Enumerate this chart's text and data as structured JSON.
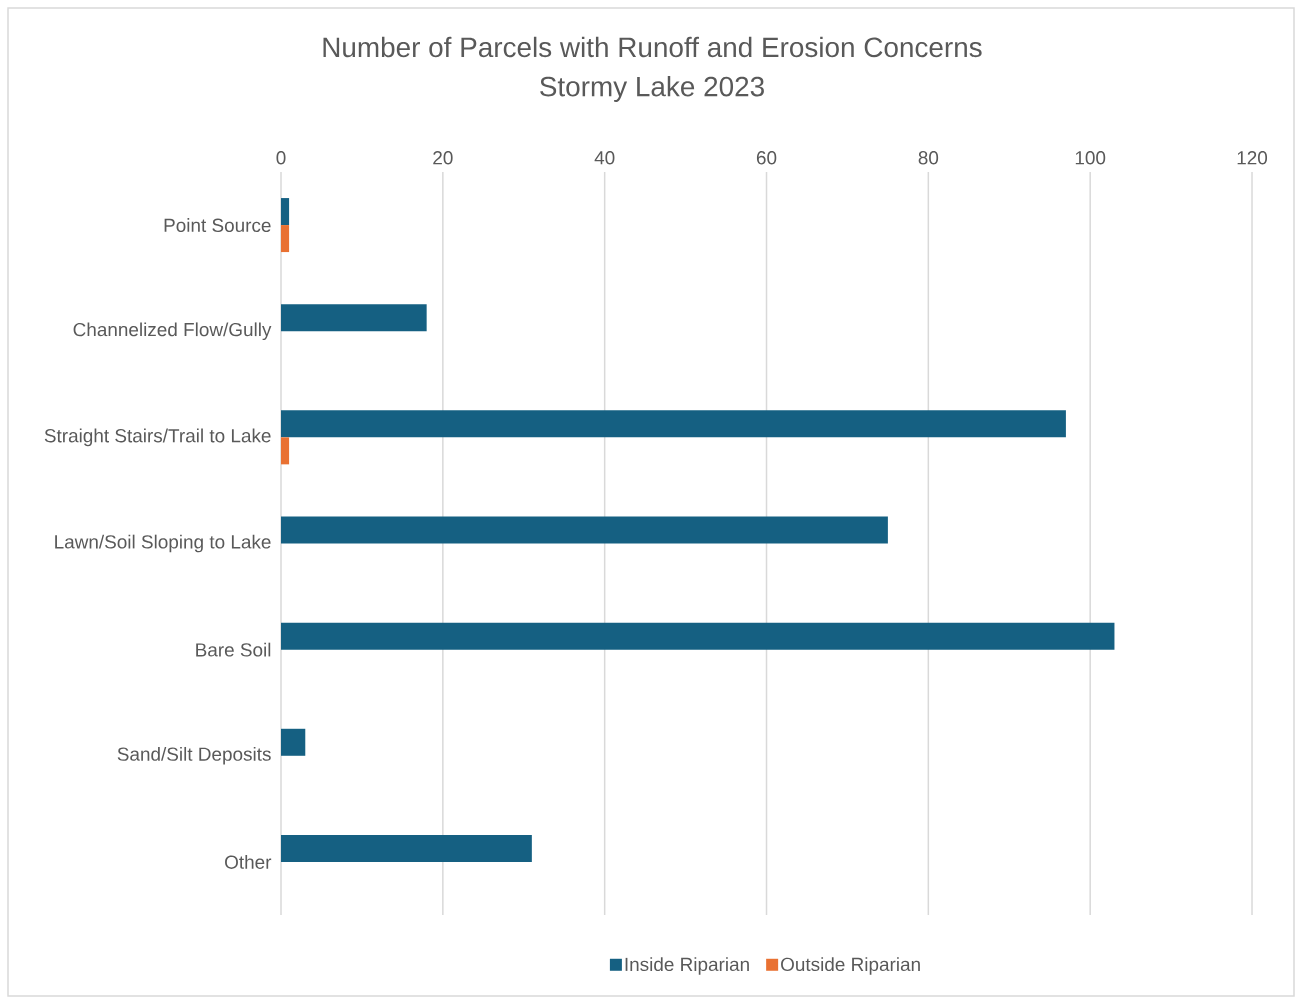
{
  "chart_data": {
    "type": "bar",
    "orientation": "horizontal",
    "title": "Number of Parcels with Runoff and Erosion Concerns",
    "subtitle": "Stormy Lake 2023",
    "categories": [
      "Point Source",
      "Channelized Flow/Gully",
      "Straight Stairs/Trail to Lake",
      "Lawn/Soil Sloping to Lake",
      "Bare Soil",
      "Sand/Silt Deposits",
      "Other"
    ],
    "series": [
      {
        "name": "Inside Riparian",
        "color": "#156082",
        "values": [
          1,
          18,
          97,
          75,
          103,
          3,
          31
        ]
      },
      {
        "name": "Outside Riparian",
        "color": "#e97132",
        "values": [
          1,
          null,
          1,
          null,
          null,
          null,
          null
        ]
      }
    ],
    "xlim": [
      0,
      120
    ],
    "xticks": [
      0,
      20,
      40,
      60,
      80,
      100,
      120
    ],
    "grid": "x",
    "legend": "bottom"
  }
}
